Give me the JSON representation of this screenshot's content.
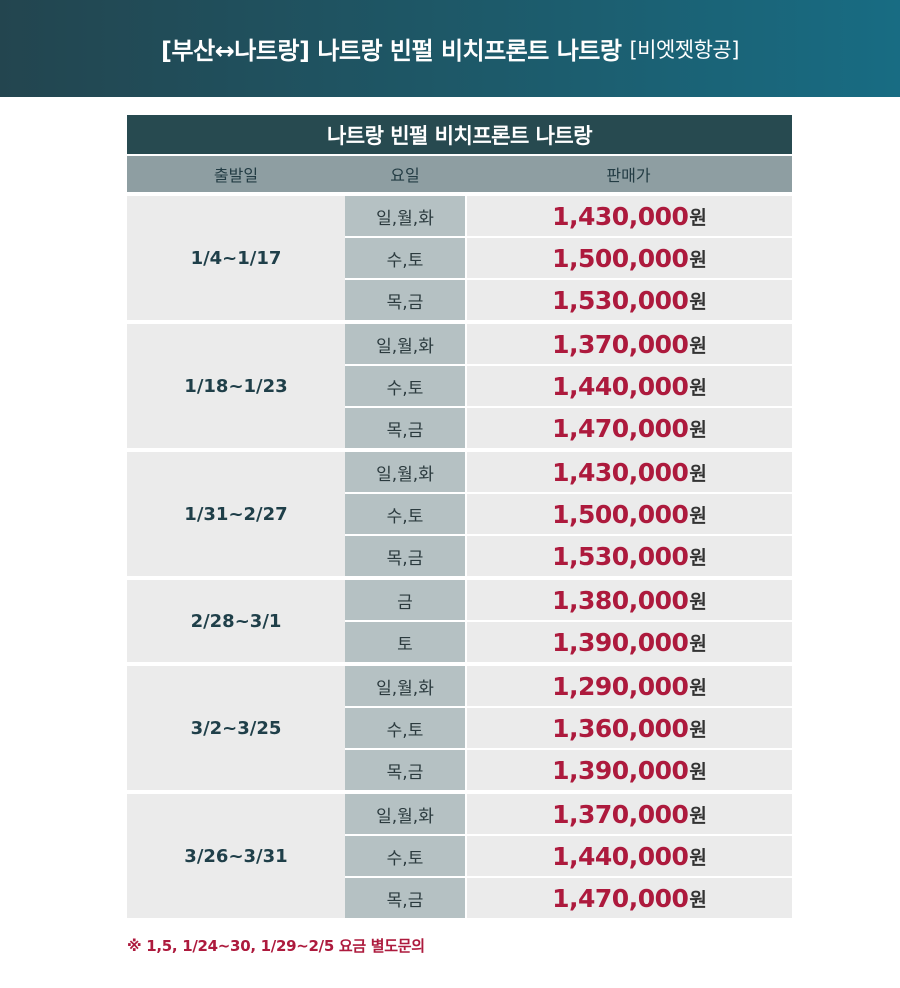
{
  "banner": {
    "main": "[부산↔나트랑] 나트랑 빈펄 비치프론트 나트랑",
    "sub": "[비엣젯항공]"
  },
  "table": {
    "title": "나트랑 빈펄 비치프론트 나트랑",
    "headers": {
      "date": "출발일",
      "day": "요일",
      "price": "판매가"
    },
    "currency_unit": "원",
    "groups": [
      {
        "date": "1/4~1/17",
        "rows": [
          {
            "days": "일,월,화",
            "price": "1,430,000"
          },
          {
            "days": "수,토",
            "price": "1,500,000"
          },
          {
            "days": "목,금",
            "price": "1,530,000"
          }
        ]
      },
      {
        "date": "1/18~1/23",
        "rows": [
          {
            "days": "일,월,화",
            "price": "1,370,000"
          },
          {
            "days": "수,토",
            "price": "1,440,000"
          },
          {
            "days": "목,금",
            "price": "1,470,000"
          }
        ]
      },
      {
        "date": "1/31~2/27",
        "rows": [
          {
            "days": "일,월,화",
            "price": "1,430,000"
          },
          {
            "days": "수,토",
            "price": "1,500,000"
          },
          {
            "days": "목,금",
            "price": "1,530,000"
          }
        ]
      },
      {
        "date": "2/28~3/1",
        "rows": [
          {
            "days": "금",
            "price": "1,380,000"
          },
          {
            "days": "토",
            "price": "1,390,000"
          }
        ]
      },
      {
        "date": "3/2~3/25",
        "rows": [
          {
            "days": "일,월,화",
            "price": "1,290,000"
          },
          {
            "days": "수,토",
            "price": "1,360,000"
          },
          {
            "days": "목,금",
            "price": "1,390,000"
          }
        ]
      },
      {
        "date": "3/26~3/31",
        "rows": [
          {
            "days": "일,월,화",
            "price": "1,370,000"
          },
          {
            "days": "수,토",
            "price": "1,440,000"
          },
          {
            "days": "목,금",
            "price": "1,470,000"
          }
        ]
      }
    ]
  },
  "footnote": "※ 1,5, 1/24~30, 1/29~2/5 요금 별도문의",
  "colors": {
    "banner_dark": "#23454f",
    "banner_light": "#186c83",
    "title_bar": "#274a50",
    "header_bar": "#8e9ea2",
    "day_cell": "#b5c1c3",
    "cell_bg": "#ebebeb",
    "price_red": "#ad1a3d"
  }
}
